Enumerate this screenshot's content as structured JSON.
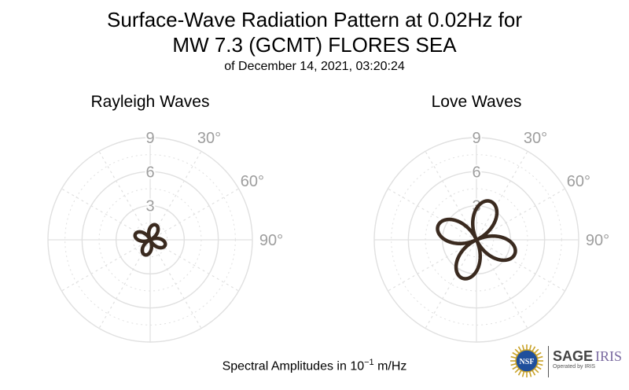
{
  "title": {
    "line1": "Surface-Wave Radiation Pattern at 0.02Hz for",
    "line2": "MW 7.3 (GCMT) FLORES SEA",
    "line3": "of December 14, 2021, 03:20:24"
  },
  "caption": {
    "prefix": "Spectral Amplitudes in ",
    "base": "10",
    "exponent": "−1",
    "unit": " m/Hz"
  },
  "logos": {
    "left_text": "NSF",
    "right_main": "SAGE",
    "right_brand": "IRIS",
    "right_sub": "Operated by IRIS"
  },
  "colors": {
    "pattern": "#3a2a1f",
    "grid": "#e0e0e0",
    "tick_label": "#9e9e9e",
    "nsf_blue": "#1f4f9c",
    "iris_purple": "#7a6aa0"
  },
  "chart_data": [
    {
      "type": "polar",
      "title": "Rayleigh Waves",
      "r_ticks": [
        3,
        6,
        9
      ],
      "r_max": 9,
      "angle_ticks": [
        "30°",
        "60°",
        "90°"
      ],
      "grid": true,
      "pattern": {
        "form": "four-lobe",
        "peak_amplitude": 1.4,
        "lobe_azimuths_deg": [
          20,
          110,
          200,
          290
        ]
      }
    },
    {
      "type": "polar",
      "title": "Love Waves",
      "r_ticks": [
        3,
        6,
        9
      ],
      "r_max": 9,
      "angle_ticks": [
        "30°",
        "60°",
        "90°"
      ],
      "grid": true,
      "pattern": {
        "form": "four-lobe",
        "peak_amplitude": 3.6,
        "lobe_azimuths_deg": [
          20,
          110,
          200,
          290
        ]
      }
    }
  ]
}
